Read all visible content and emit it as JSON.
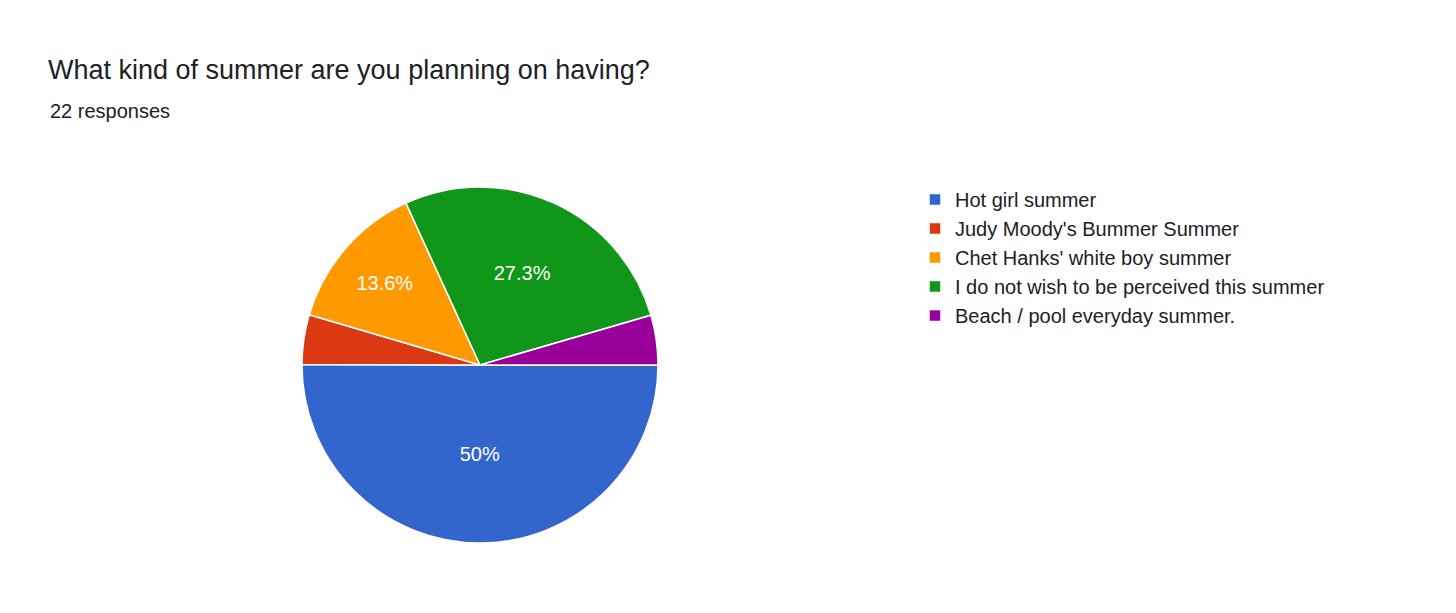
{
  "chart_data": {
    "type": "pie",
    "title": "What kind of summer are you planning on having?",
    "subtitle": "22 responses",
    "categories": [
      "Hot girl summer",
      "Judy Moody's Bummer Summer",
      "Chet Hanks' white boy summer",
      "I do not wish to be perceived this summer",
      "Beach / pool everyday summer."
    ],
    "values": [
      50,
      4.5,
      13.6,
      27.3,
      4.5
    ],
    "value_labels": [
      "50%",
      null,
      "13.6%",
      "27.3%",
      null
    ],
    "colors": [
      "#3366cc",
      "#dc3912",
      "#ff9900",
      "#109618",
      "#990099"
    ],
    "data_labels": true,
    "legend": "right"
  }
}
